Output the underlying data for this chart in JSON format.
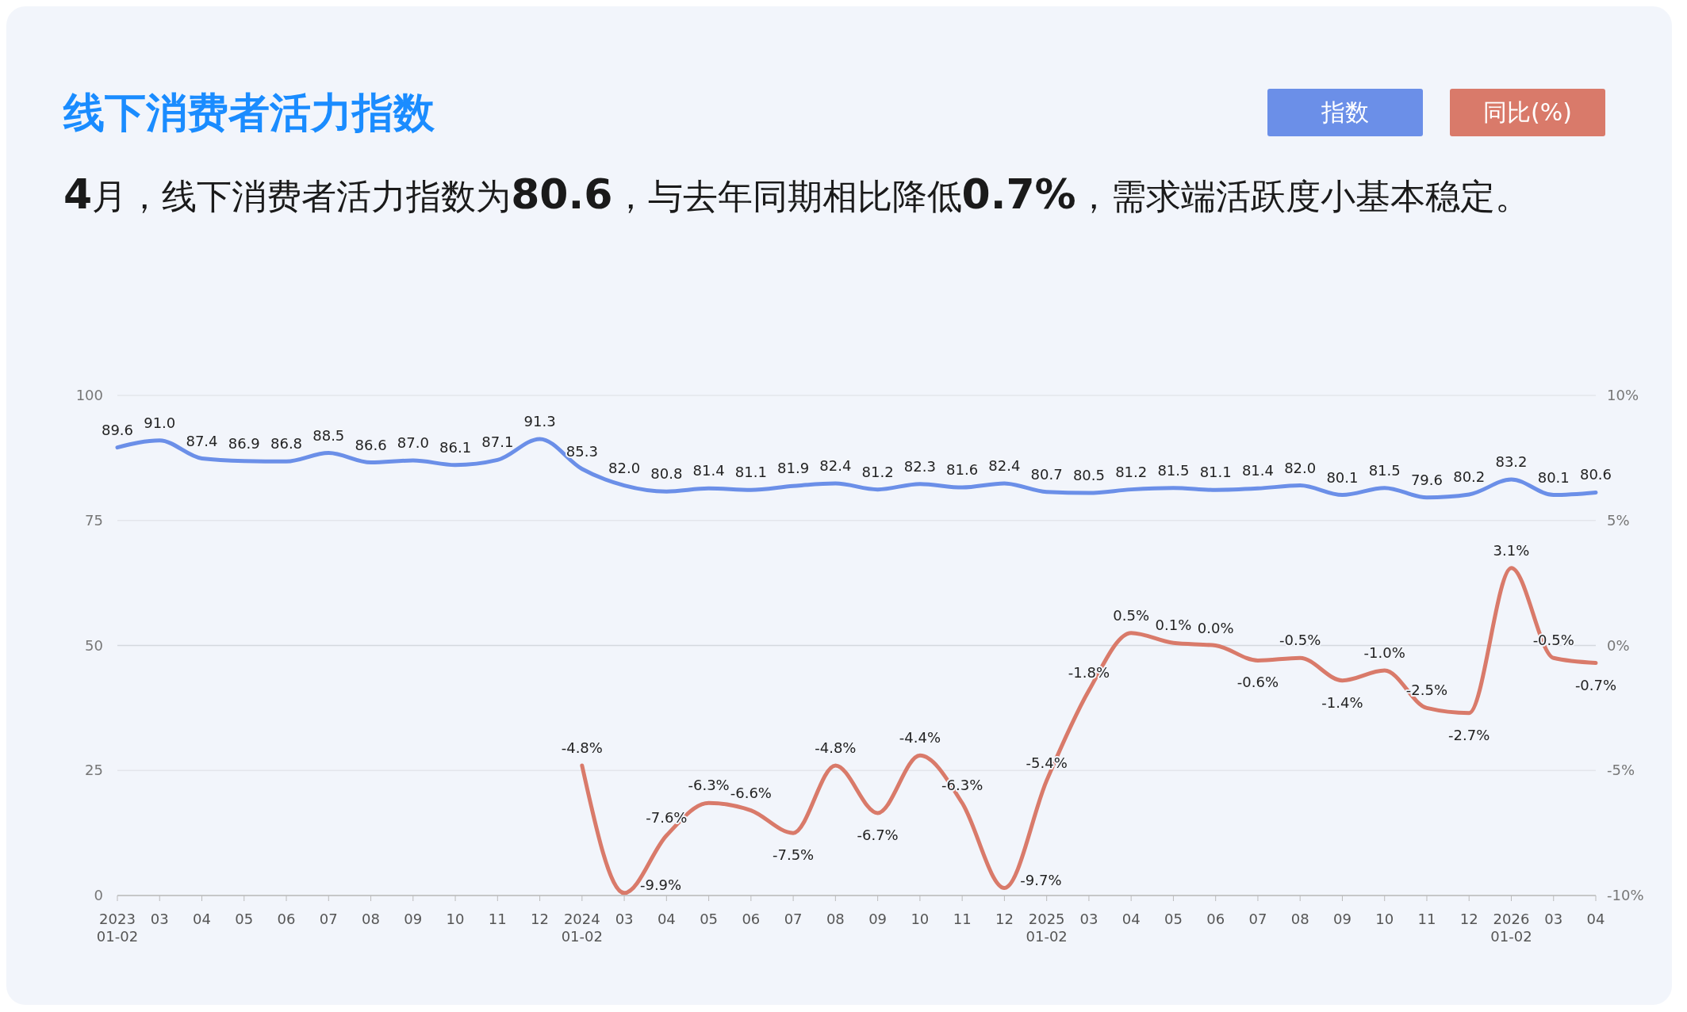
{
  "chart_data": {
    "type": "line",
    "title": "线下消费者活力指数",
    "subtitle": "4月，线下消费者活力指数为80.6，与去年同期相比降低0.7%，需求端活跃度小基本稳定。",
    "categories": [
      "2023\n01-02",
      "03",
      "04",
      "05",
      "06",
      "07",
      "08",
      "09",
      "10",
      "11",
      "12",
      "2024\n01-02",
      "03",
      "04",
      "05",
      "06",
      "07",
      "08",
      "09",
      "10",
      "11",
      "12",
      "2025\n01-02",
      "03",
      "04",
      "05",
      "06",
      "07",
      "08",
      "09",
      "10",
      "11",
      "12",
      "2026\n01-02",
      "03",
      "04"
    ],
    "series": [
      {
        "name": "指数",
        "color": "#6b8fe8",
        "values": [
          89.6,
          91.0,
          87.4,
          86.9,
          86.8,
          88.5,
          86.6,
          87.0,
          86.1,
          87.1,
          91.3,
          85.3,
          82.0,
          80.8,
          81.4,
          81.1,
          81.9,
          82.4,
          81.2,
          82.3,
          81.6,
          82.4,
          80.7,
          80.5,
          81.2,
          81.5,
          81.1,
          81.4,
          82.0,
          80.1,
          81.5,
          79.6,
          80.2,
          83.2,
          80.1,
          80.6
        ],
        "value_labels": [
          "89.6",
          "91.0",
          "87.4",
          "86.9",
          "86.8",
          "88.5",
          "86.6",
          "87.0",
          "86.1",
          "87.1",
          "91.3",
          "85.3",
          "82.0",
          "80.8",
          "81.4",
          "81.1",
          "81.9",
          "82.4",
          "81.2",
          "82.3",
          "81.6",
          "82.4",
          "80.7",
          "80.5",
          "81.2",
          "81.5",
          "81.1",
          "81.4",
          "82.0",
          "80.1",
          "81.5",
          "79.6",
          "80.2",
          "83.2",
          "80.1",
          "80.6"
        ]
      },
      {
        "name": "同比(%)",
        "color": "#d97a6a",
        "axis": "y2",
        "values": [
          null,
          null,
          null,
          null,
          null,
          null,
          null,
          null,
          null,
          null,
          null,
          -4.8,
          -9.9,
          -7.6,
          -6.3,
          -6.6,
          -7.5,
          -4.8,
          -6.7,
          -4.4,
          -6.3,
          -9.7,
          -5.4,
          -1.8,
          0.5,
          0.1,
          0.0,
          -0.6,
          -0.5,
          -1.4,
          -1.0,
          -2.5,
          -2.7,
          3.1,
          -0.5,
          -0.7
        ],
        "value_labels": [
          null,
          null,
          null,
          null,
          null,
          null,
          null,
          null,
          null,
          null,
          null,
          "-4.8%",
          "-9.9%",
          "-7.6%",
          "-6.3%",
          "-6.6%",
          "-7.5%",
          "-4.8%",
          "-6.7%",
          "-4.4%",
          "-6.3%",
          "-9.7%",
          "-5.4%",
          "-1.8%",
          "0.5%",
          "0.1%",
          "0.0%",
          "-0.6%",
          "-0.5%",
          "-1.4%",
          "-1.0%",
          "-2.5%",
          "-2.7%",
          "3.1%",
          "-0.5%",
          "-0.7%"
        ]
      }
    ],
    "ylim": [
      0,
      100
    ],
    "yticks": [
      0,
      25,
      50,
      75,
      100
    ],
    "y2lim": [
      -10,
      10
    ],
    "y2ticks": [
      {
        "value": -10,
        "label": "-10%"
      },
      {
        "value": -5,
        "label": "-5%"
      },
      {
        "value": 0,
        "label": "0%"
      },
      {
        "value": 5,
        "label": "5%"
      },
      {
        "value": 10,
        "label": "10%"
      }
    ],
    "grid": "y",
    "legend": "top right",
    "marker": "none",
    "line_style": "solid"
  }
}
